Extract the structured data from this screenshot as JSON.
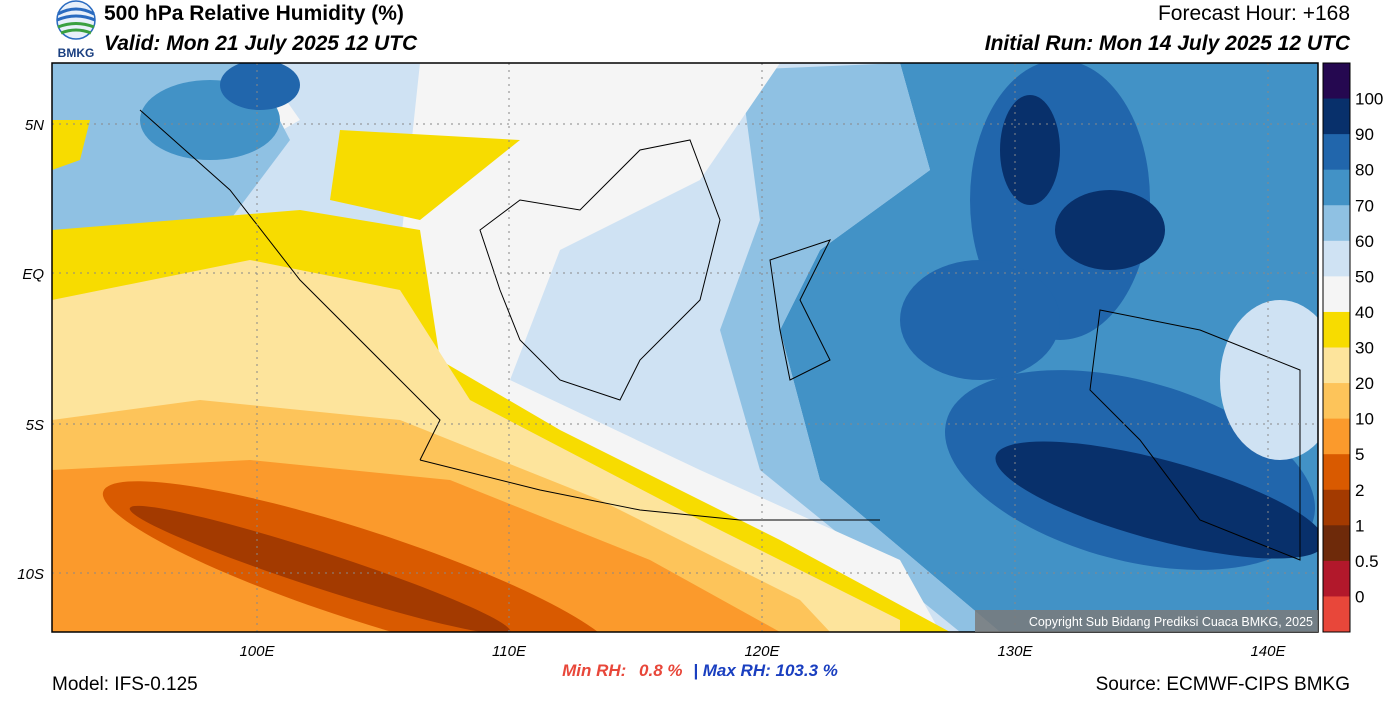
{
  "header": {
    "logo_text": "BMKG",
    "title": "500 hPa Relative Humidity (%)",
    "valid": "Valid: Mon 21 July 2025 12 UTC",
    "forecast_hour": "Forecast Hour: +168",
    "initial_run": "Initial Run: Mon 14 July 2025 12 UTC"
  },
  "map": {
    "lat_labels": [
      "5N",
      "EQ",
      "5S",
      "10S"
    ],
    "lon_labels": [
      "100E",
      "110E",
      "120E",
      "130E",
      "140E"
    ],
    "copyright": "Copyright Sub Bidang Prediksi Cuaca BMKG, 2025"
  },
  "colorbar": {
    "labels": [
      100,
      90,
      80,
      70,
      60,
      50,
      40,
      30,
      20,
      10,
      5,
      2,
      1,
      0.5,
      0
    ],
    "colors": [
      "#250850",
      "#08306b",
      "#2166ac",
      "#4292c6",
      "#8fc1e3",
      "#cfe2f3",
      "#f5f5f5",
      "#f7dc00",
      "#fde49c",
      "#fdc45a",
      "#fb9a2c",
      "#d95a00",
      "#a33a00",
      "#6e2a0a",
      "#b2182b",
      "#e8473a"
    ]
  },
  "stats": {
    "min_label": "Min RH:",
    "min_value": "0.8 %",
    "separator": "|",
    "max": "Max RH: 103.3 %"
  },
  "footer": {
    "model": "Model: IFS-0.125",
    "source": "Source: ECMWF-CIPS BMKG"
  }
}
